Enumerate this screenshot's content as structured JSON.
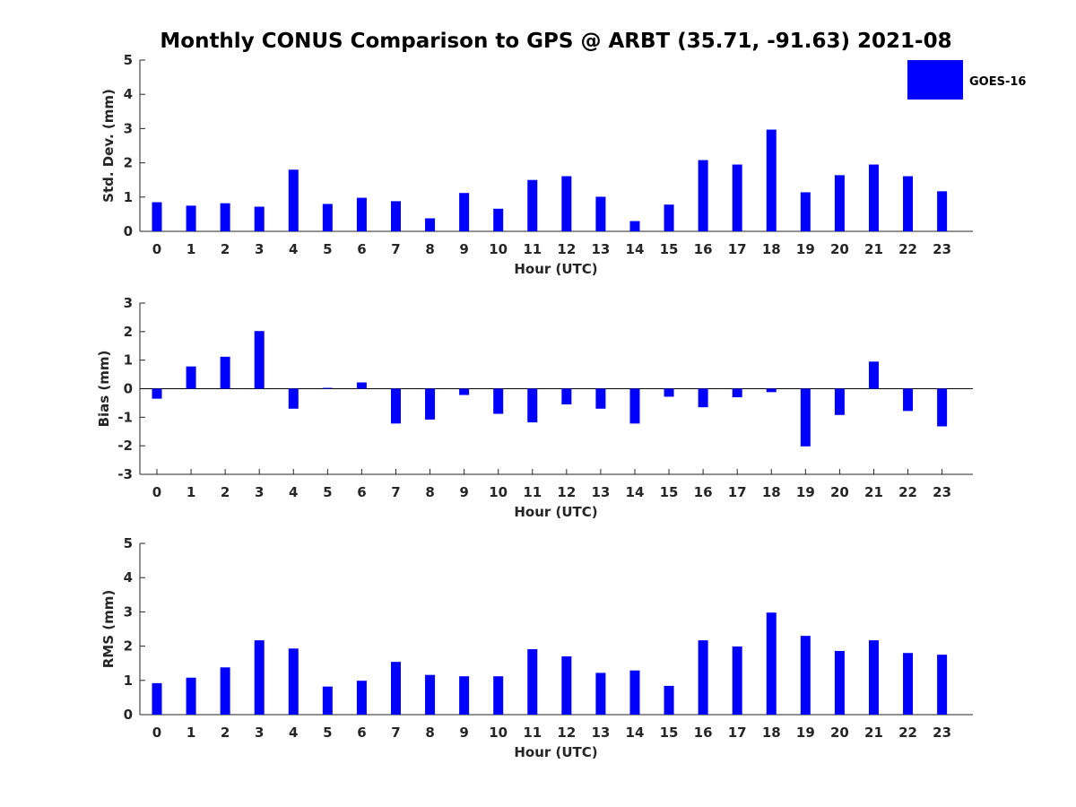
{
  "chart_data": {
    "type": "bar",
    "title": "Monthly CONUS Comparison to GPS @ ARBT (35.71, -91.63) 2021-08",
    "legend": {
      "entries": [
        "GOES-16"
      ],
      "placement": "top-right"
    },
    "bar_color": "#0000ff",
    "xlabel": "Hour (UTC)",
    "categories": [
      "0",
      "1",
      "2",
      "3",
      "4",
      "5",
      "6",
      "7",
      "8",
      "9",
      "10",
      "11",
      "12",
      "13",
      "14",
      "15",
      "16",
      "17",
      "18",
      "19",
      "20",
      "21",
      "22",
      "23"
    ],
    "panels": [
      {
        "ylabel": "Std. Dev. (mm)",
        "ylim": [
          0,
          5
        ],
        "yticks": [
          "0",
          "1",
          "2",
          "3",
          "4",
          "5"
        ],
        "series": [
          {
            "name": "GOES-16",
            "values": [
              0.85,
              0.75,
              0.82,
              0.72,
              1.8,
              0.8,
              0.98,
              0.88,
              0.38,
              1.12,
              0.66,
              1.5,
              1.61,
              1.01,
              0.3,
              0.78,
              2.08,
              1.95,
              2.97,
              1.14,
              1.64,
              1.95,
              1.61,
              1.17
            ]
          }
        ]
      },
      {
        "ylabel": "Bias (mm)",
        "ylim": [
          -3,
          3
        ],
        "yticks": [
          "-3",
          "-2",
          "-1",
          "0",
          "1",
          "2",
          "3"
        ],
        "series": [
          {
            "name": "GOES-16",
            "values": [
              -0.35,
              0.78,
              1.12,
              2.02,
              -0.7,
              0.03,
              0.22,
              -1.22,
              -1.08,
              -0.22,
              -0.88,
              -1.18,
              -0.55,
              -0.7,
              -1.22,
              -0.28,
              -0.65,
              -0.3,
              -0.12,
              -2.02,
              -0.92,
              0.95,
              -0.78,
              -1.32
            ]
          }
        ]
      },
      {
        "ylabel": "RMS (mm)",
        "ylim": [
          0,
          5
        ],
        "yticks": [
          "0",
          "1",
          "2",
          "3",
          "4",
          "5"
        ],
        "series": [
          {
            "name": "GOES-16",
            "values": [
              0.92,
              1.08,
              1.38,
              2.17,
              1.93,
              0.82,
              0.99,
              1.54,
              1.16,
              1.12,
              1.12,
              1.91,
              1.7,
              1.22,
              1.29,
              0.84,
              2.17,
              1.99,
              2.98,
              2.3,
              1.86,
              2.17,
              1.8,
              1.75
            ]
          }
        ]
      }
    ]
  }
}
